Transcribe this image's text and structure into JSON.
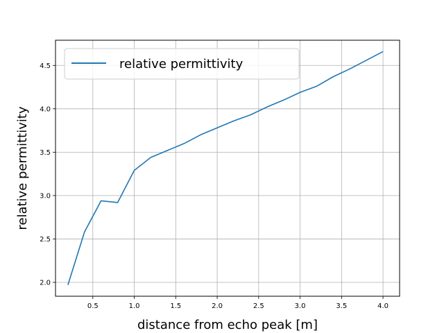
{
  "chart_data": {
    "type": "line",
    "title": "",
    "xlabel": "distance from echo peak [m]",
    "ylabel": "relative permittivity",
    "xlim": [
      0.05,
      4.2
    ],
    "ylim": [
      1.84,
      4.79
    ],
    "xticks": [
      0.5,
      1.0,
      1.5,
      2.0,
      2.5,
      3.0,
      3.5,
      4.0
    ],
    "xtick_labels": [
      "0.5",
      "1.0",
      "1.5",
      "2.0",
      "2.5",
      "3.0",
      "3.5",
      "4.0"
    ],
    "yticks": [
      2.0,
      2.5,
      3.0,
      3.5,
      4.0,
      4.5
    ],
    "ytick_labels": [
      "2.0",
      "2.5",
      "3.0",
      "3.5",
      "4.0",
      "4.5"
    ],
    "grid": true,
    "legend": {
      "position": "upper-left",
      "entries": [
        "relative permittivity"
      ]
    },
    "series": [
      {
        "name": "relative permittivity",
        "color": "#1f77b4",
        "x": [
          0.2,
          0.4,
          0.6,
          0.8,
          1.0,
          1.2,
          1.4,
          1.6,
          1.8,
          2.0,
          2.2,
          2.4,
          2.6,
          2.8,
          3.0,
          3.2,
          3.4,
          3.6,
          3.8,
          4.0
        ],
        "y": [
          1.97,
          2.58,
          2.94,
          2.92,
          3.29,
          3.44,
          3.52,
          3.6,
          3.7,
          3.78,
          3.86,
          3.93,
          4.02,
          4.1,
          4.19,
          4.26,
          4.37,
          4.46,
          4.56,
          4.66
        ]
      }
    ]
  }
}
